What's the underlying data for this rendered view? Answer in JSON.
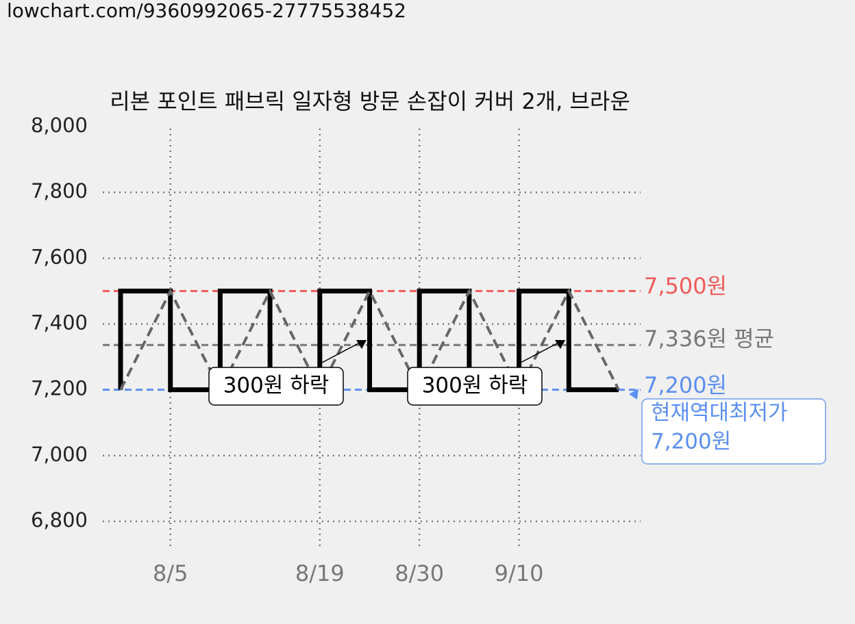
{
  "source": "lowchart.com/9360992065-27775538452",
  "chart_data": {
    "type": "line",
    "title": "리본 포인트 패브릭 일자형 방문 손잡이 커버 2개, 브라운",
    "categories": [
      null,
      "8/5",
      null,
      null,
      "8/19",
      null,
      "8/30",
      null,
      "9/10",
      null,
      null
    ],
    "series": [
      {
        "color": "#000000",
        "values": [
          7200,
          7500,
          7200,
          7500,
          7200,
          7500,
          7200,
          7500,
          7200,
          7500,
          7200
        ]
      }
    ],
    "ylim": [
      6800,
      8000
    ],
    "yticks": [
      {
        "value": 6800,
        "label": "6,800"
      },
      {
        "value": 7000,
        "label": "7,000"
      },
      {
        "value": 7200,
        "label": "7,200"
      },
      {
        "value": 7400,
        "label": "7,400"
      },
      {
        "value": 7600,
        "label": "7,600"
      },
      {
        "value": 7800,
        "label": "7,800"
      },
      {
        "value": 8000,
        "label": "8,000"
      }
    ],
    "grid": true,
    "reference_lines": [
      {
        "value": 7500,
        "label": "7,500원",
        "color": "#f05a5a"
      },
      {
        "value": 7336,
        "label": "7,336원 평균",
        "color": "#777777"
      },
      {
        "value": 7200,
        "label": "7,200원",
        "color": "#5b8ff0"
      }
    ],
    "annotations": [
      "300원 하락",
      "300원 하락"
    ],
    "low_note": [
      "현재역대최저가",
      "7,200원"
    ]
  }
}
